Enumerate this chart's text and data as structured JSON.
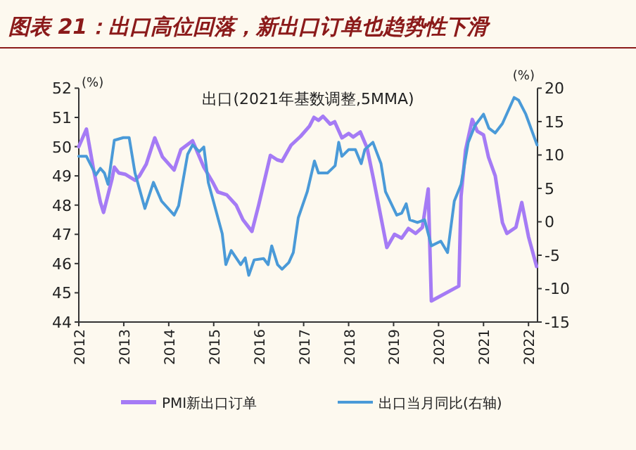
{
  "chart_data": {
    "type": "line",
    "title": "图表 21：出口高位回落，新出口订单也趋势性下滑",
    "subtitle": "出口(2021年基数调整,5MMA)",
    "ylabel": "(%)",
    "y2label": "(%)",
    "xlim": [
      2012,
      2022.2
    ],
    "xticks": [
      2012,
      2013,
      2014,
      2015,
      2016,
      2017,
      2018,
      2019,
      2020,
      2021,
      2022
    ],
    "ylim": [
      44,
      52
    ],
    "yticks": [
      44,
      45,
      46,
      47,
      48,
      49,
      50,
      51,
      52
    ],
    "y2lim": [
      -15,
      20
    ],
    "y2ticks": [
      -15,
      -10,
      -5,
      0,
      5,
      10,
      15,
      20
    ],
    "legend": "bottom",
    "grid": false,
    "marker": "none",
    "series": [
      {
        "name": "PMI新出口订单",
        "color": "#a57bf5",
        "x": [
          2012.0,
          2012.17,
          2012.33,
          2012.48,
          2012.55,
          2012.74,
          2012.79,
          2012.89,
          2013.04,
          2013.25,
          2013.35,
          2013.5,
          2013.69,
          2013.86,
          2014.12,
          2014.27,
          2014.53,
          2014.78,
          2014.99,
          2015.09,
          2015.29,
          2015.5,
          2015.65,
          2015.85,
          2016.0,
          2016.26,
          2016.41,
          2016.52,
          2016.72,
          2016.93,
          2017.13,
          2017.23,
          2017.33,
          2017.43,
          2017.59,
          2017.69,
          2017.85,
          2018.0,
          2018.1,
          2018.26,
          2018.41,
          2018.56,
          2018.85,
          2019.02,
          2019.18,
          2019.33,
          2019.49,
          2019.64,
          2019.77,
          2019.84,
          2020.45,
          2020.5,
          2020.6,
          2020.75,
          2020.86,
          2021.0,
          2021.11,
          2021.26,
          2021.42,
          2021.52,
          2021.72,
          2021.85,
          2022.0,
          2022.18
        ],
        "values": [
          50.0,
          50.6,
          49.2,
          48.1,
          47.75,
          48.9,
          49.3,
          49.1,
          49.05,
          48.85,
          49.0,
          49.4,
          50.3,
          49.65,
          49.2,
          49.9,
          50.2,
          49.3,
          48.75,
          48.45,
          48.35,
          48.0,
          47.5,
          47.1,
          48.0,
          49.7,
          49.55,
          49.5,
          50.05,
          50.35,
          50.7,
          51.0,
          50.9,
          51.04,
          50.77,
          50.85,
          50.3,
          50.45,
          50.33,
          50.5,
          49.96,
          48.84,
          46.55,
          47.0,
          46.87,
          47.2,
          47.03,
          47.24,
          48.55,
          44.72,
          45.23,
          48.3,
          49.88,
          50.93,
          50.53,
          50.4,
          49.64,
          49.0,
          47.4,
          47.03,
          47.24,
          48.09,
          46.92,
          45.9
        ]
      },
      {
        "name": "出口当月同比(右轴)",
        "color": "#4a9ad8",
        "axis": "y2",
        "x": [
          2012.0,
          2012.17,
          2012.38,
          2012.48,
          2012.57,
          2012.65,
          2012.79,
          2012.99,
          2013.12,
          2013.25,
          2013.35,
          2013.47,
          2013.66,
          2013.84,
          2014.12,
          2014.22,
          2014.42,
          2014.53,
          2014.68,
          2014.78,
          2014.88,
          2015.19,
          2015.27,
          2015.39,
          2015.6,
          2015.7,
          2015.78,
          2015.9,
          2016.11,
          2016.21,
          2016.29,
          2016.42,
          2016.52,
          2016.67,
          2016.77,
          2016.88,
          2017.08,
          2017.24,
          2017.33,
          2017.53,
          2017.7,
          2017.78,
          2017.85,
          2018.0,
          2018.15,
          2018.28,
          2018.36,
          2018.54,
          2018.72,
          2018.82,
          2019.07,
          2019.18,
          2019.28,
          2019.36,
          2019.53,
          2019.69,
          2019.84,
          2020.05,
          2020.2,
          2020.35,
          2020.5,
          2020.66,
          2020.81,
          2021.0,
          2021.12,
          2021.26,
          2021.42,
          2021.68,
          2021.78,
          2021.94,
          2022.19
        ],
        "values": [
          9.8,
          9.8,
          7.0,
          8.0,
          7.3,
          5.6,
          12.2,
          12.6,
          12.6,
          7.3,
          4.9,
          2.0,
          5.9,
          3.1,
          1.0,
          2.4,
          10.1,
          11.5,
          10.5,
          11.2,
          5.9,
          -1.8,
          -6.4,
          -4.3,
          -6.4,
          -5.4,
          -8.0,
          -5.7,
          -5.5,
          -6.4,
          -3.6,
          -6.4,
          -7.1,
          -6.1,
          -4.6,
          0.6,
          4.5,
          9.1,
          7.3,
          7.3,
          8.4,
          11.9,
          9.8,
          10.8,
          10.8,
          8.7,
          10.8,
          11.9,
          8.7,
          4.5,
          1.0,
          1.3,
          2.7,
          0.3,
          -0.1,
          0.3,
          -3.6,
          -2.9,
          -4.6,
          3.1,
          5.6,
          11.9,
          14.4,
          16.1,
          14.0,
          13.3,
          14.7,
          18.6,
          18.2,
          16.1,
          11.5
        ]
      }
    ]
  }
}
